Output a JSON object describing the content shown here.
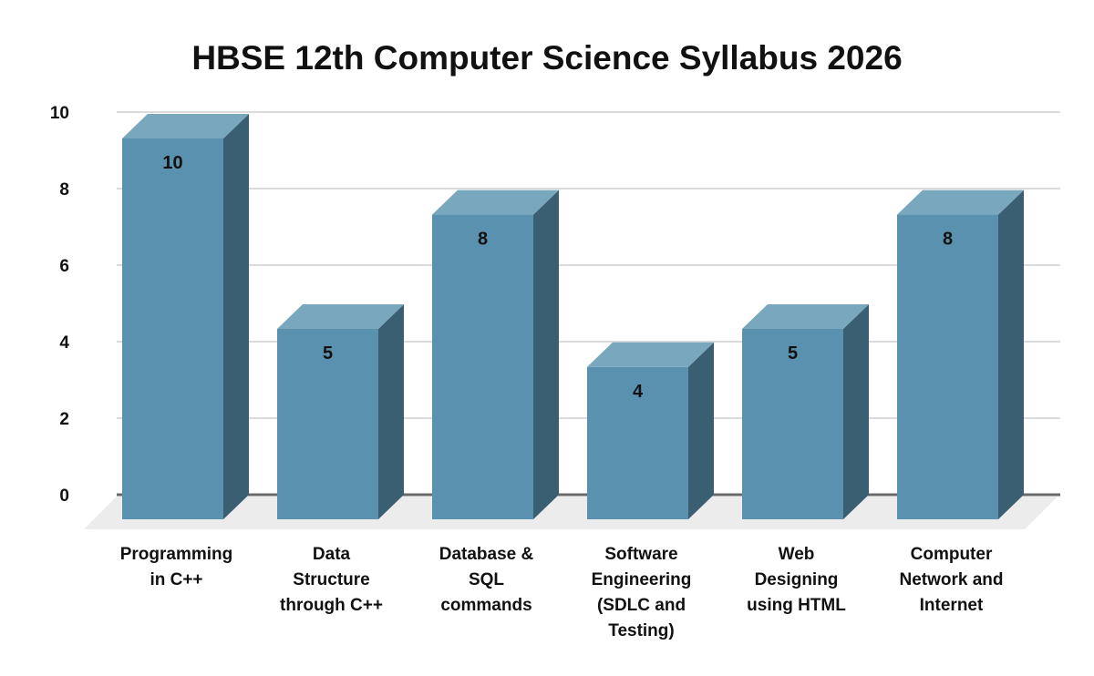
{
  "chart_data": {
    "type": "bar",
    "title": "HBSE 12th Computer Science Syllabus 2026",
    "xlabel": "",
    "ylabel": "",
    "ylim": [
      0,
      10
    ],
    "yticks": [
      0,
      2,
      4,
      6,
      8,
      10
    ],
    "grid": true,
    "legend": null,
    "style": "3d-column",
    "categories": [
      "Programming in C++",
      "Data Structure through C++",
      "Database & SQL commands",
      "Software Engineering (SDLC and Testing)",
      "Web Designing using HTML",
      "Computer Network and Internet"
    ],
    "category_label_lines": [
      [
        "Programming",
        "in C++"
      ],
      [
        "Data",
        "Structure",
        "through C++"
      ],
      [
        "Database &",
        "SQL",
        "commands"
      ],
      [
        "Software",
        "Engineering",
        "(SDLC and",
        "Testing)"
      ],
      [
        "Web",
        "Designing",
        "using HTML"
      ],
      [
        "Computer",
        "Network and",
        "Internet"
      ]
    ],
    "values": [
      10,
      5,
      8,
      4,
      5,
      8
    ],
    "data_labels": [
      "10",
      "5",
      "8",
      "4",
      "5",
      "8"
    ],
    "colors": {
      "bar_front": "#5a91ae",
      "bar_top": "#78a7be",
      "bar_side": "#3b5f72",
      "gridline": "#dadada",
      "zero_line": "#6a6a6a",
      "floor": "#ececec",
      "text": "#111111"
    }
  }
}
